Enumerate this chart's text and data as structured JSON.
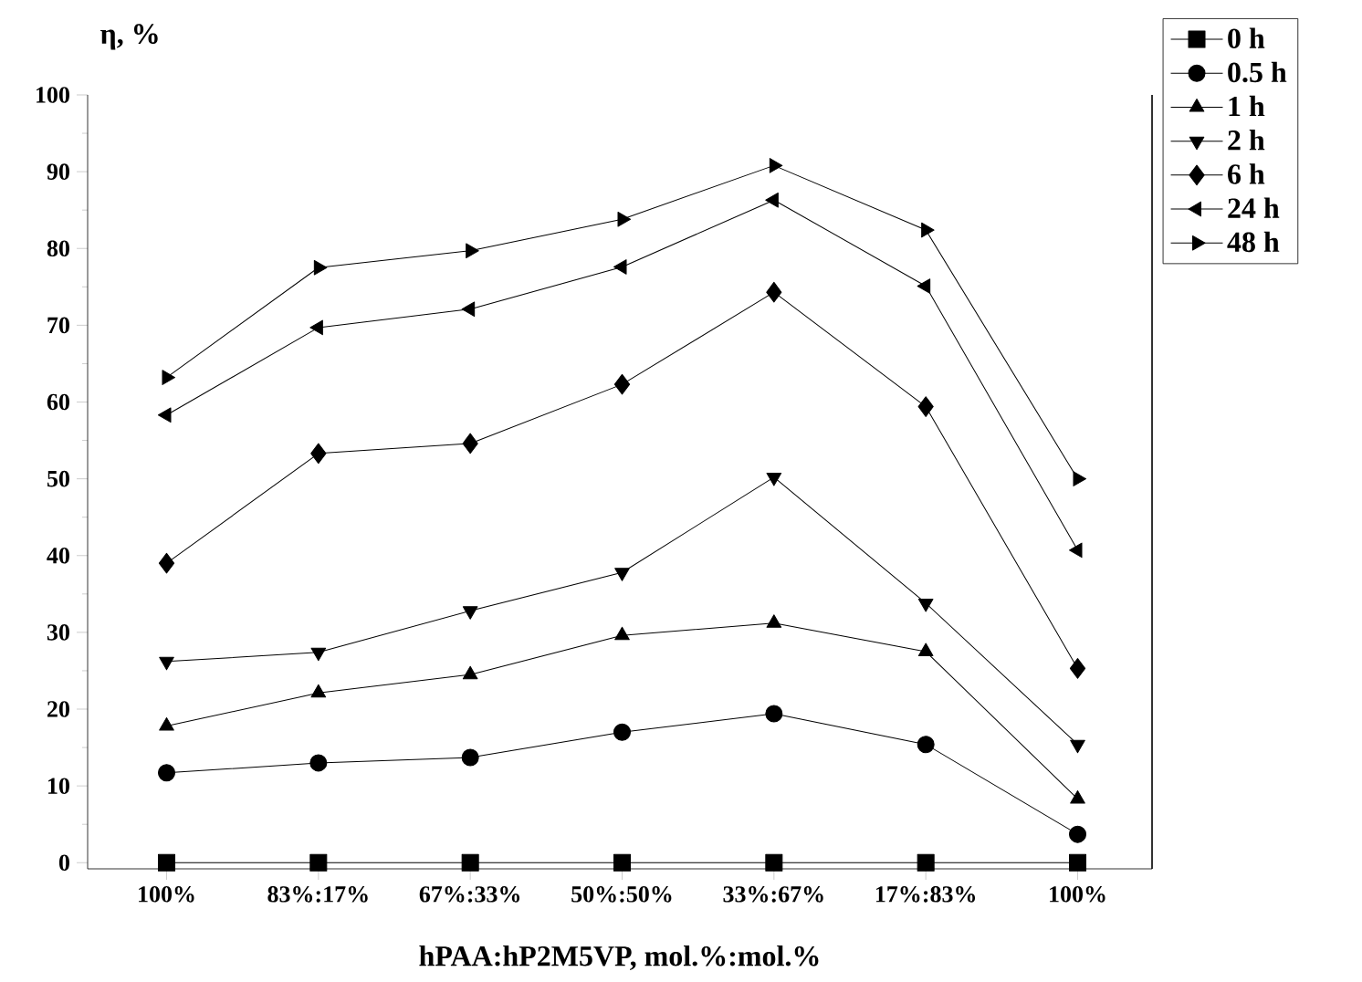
{
  "chart_data": {
    "type": "line",
    "xlabel": "hPAA:hP2M5VP, mol.%:mol.%",
    "ylabel": "η, %",
    "categories": [
      "100%",
      "83%:17%",
      "67%:33%",
      "50%:50%",
      "33%:67%",
      "17%:83%",
      "100%"
    ],
    "ylim": [
      -0.8,
      100
    ],
    "yticks": [
      0,
      10,
      20,
      30,
      40,
      50,
      60,
      70,
      80,
      90,
      100
    ],
    "legend": "top right",
    "grid": false,
    "series": [
      {
        "name": "0 h",
        "color": "#000000",
        "marker": "square",
        "values": [
          0,
          0,
          0,
          0,
          0,
          0,
          0
        ]
      },
      {
        "name": "0.5 h",
        "color": "#000000",
        "marker": "circle",
        "values": [
          11.7,
          13.0,
          13.7,
          17.0,
          19.4,
          15.4,
          3.7
        ]
      },
      {
        "name": "1 h",
        "color": "#000000",
        "marker": "triangle",
        "values": [
          17.8,
          22.1,
          24.5,
          29.6,
          31.2,
          27.5,
          8.3
        ]
      },
      {
        "name": "2 h",
        "color": "#000000",
        "marker": "triangle-down",
        "values": [
          26.2,
          27.4,
          32.8,
          37.8,
          50.2,
          33.8,
          15.4
        ]
      },
      {
        "name": "6 h",
        "color": "#000000",
        "marker": "diamond",
        "values": [
          39.0,
          53.3,
          54.6,
          62.3,
          74.3,
          59.4,
          25.3
        ]
      },
      {
        "name": "24 h",
        "color": "#000000",
        "marker": "triangle-left",
        "values": [
          58.3,
          69.7,
          72.1,
          77.6,
          86.3,
          75.1,
          40.7
        ]
      },
      {
        "name": "48 h",
        "color": "#000000",
        "marker": "triangle-right",
        "values": [
          63.2,
          77.5,
          79.7,
          83.8,
          90.8,
          82.4,
          50.0
        ]
      }
    ]
  }
}
